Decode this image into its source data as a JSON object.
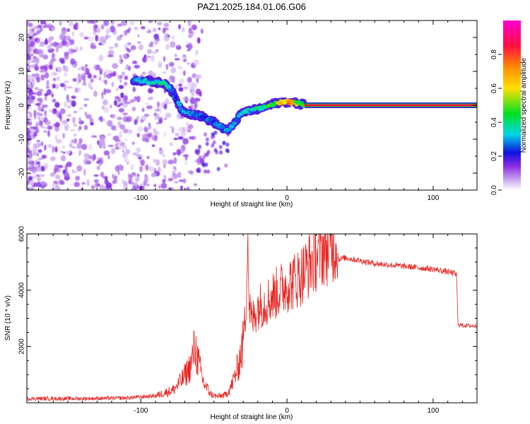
{
  "title": "PAZ1.2025.184.01.06.G06",
  "chart_data": [
    {
      "type": "heatmap",
      "xlabel": "Height of straight line (km)",
      "ylabel": "Frequency (Hz)",
      "xlim": [
        -178,
        130
      ],
      "ylim": [
        -25,
        25
      ],
      "xticks": [
        -100,
        0,
        100
      ],
      "yticks": [
        -20,
        -10,
        0,
        10,
        20
      ],
      "grid": false,
      "colormap": [
        "#ffffff",
        "#c9a8f0",
        "#8e2de2",
        "#1010e0",
        "#00d8e8",
        "#00e020",
        "#ffe000",
        "#ff9000",
        "#ff1040",
        "#ff00d0"
      ],
      "colorbar": {
        "label": "Normalized spectral amplitude",
        "range": [
          0,
          1
        ],
        "ticks": [
          0.0,
          0.2,
          0.4,
          0.6,
          0.8
        ]
      },
      "ridge": {
        "x": [
          -105,
          -98,
          -90,
          -83,
          -78,
          -72,
          -66,
          -60,
          -55,
          -50,
          -45,
          -40,
          -35,
          -30,
          -24,
          -18,
          -12,
          -6,
          0,
          6,
          12
        ],
        "freq": [
          7.5,
          7.2,
          6.8,
          6.5,
          3.5,
          -1.5,
          -2.5,
          -3.0,
          -4.0,
          -5.0,
          -6.5,
          -7.5,
          -4.5,
          -2.0,
          -1.5,
          -1.0,
          0.0,
          0.8,
          1.0,
          0.6,
          0.3
        ],
        "amplitude": [
          0.3,
          0.35,
          0.4,
          0.4,
          0.25,
          0.3,
          0.28,
          0.25,
          0.25,
          0.28,
          0.3,
          0.3,
          0.3,
          0.35,
          0.35,
          0.4,
          0.45,
          0.55,
          0.8,
          0.6,
          0.4
        ]
      },
      "steady_line": {
        "x_start": 12,
        "x_end": 130,
        "freq": 0,
        "amplitude": 0.95
      }
    },
    {
      "type": "line",
      "xlabel": "Height of straight line (km)",
      "ylabel": "SNR (10 * v/v)",
      "xlim": [
        -178,
        130
      ],
      "ylim": [
        0,
        6000
      ],
      "xticks": [
        -100,
        0,
        100
      ],
      "yticks": [
        2000,
        4000,
        6000
      ],
      "grid": false,
      "color": "#e8231f",
      "x": [
        -178,
        -140,
        -110,
        -90,
        -78,
        -72,
        -66,
        -63,
        -60,
        -57,
        -52,
        -48,
        -42,
        -38,
        -34,
        -30,
        -28,
        -27,
        -26,
        -24,
        -20,
        -15,
        -10,
        -5,
        0,
        5,
        10,
        15,
        20,
        25,
        30,
        35,
        40,
        45,
        50,
        55,
        60,
        70,
        80,
        90,
        100,
        105,
        110,
        114,
        116,
        117,
        118,
        120,
        125,
        130
      ],
      "y": [
        150,
        150,
        170,
        250,
        450,
        800,
        1300,
        2000,
        1300,
        700,
        300,
        220,
        280,
        600,
        1200,
        2100,
        3000,
        6000,
        3200,
        2600,
        3100,
        3200,
        3400,
        3600,
        3800,
        3900,
        4100,
        4400,
        4700,
        4900,
        5000,
        5100,
        5150,
        5100,
        5050,
        5000,
        4950,
        4900,
        4850,
        4800,
        4750,
        4700,
        4650,
        4600,
        4550,
        2800,
        2780,
        2750,
        2740,
        2730
      ]
    }
  ]
}
